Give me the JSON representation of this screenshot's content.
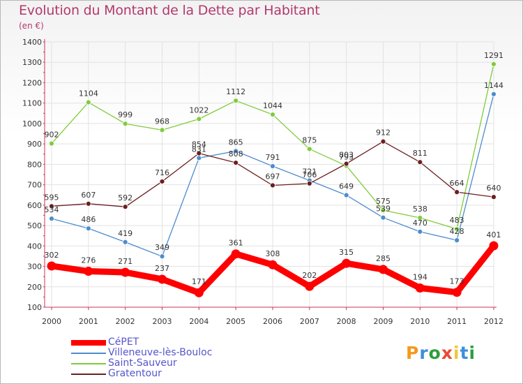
{
  "header": {
    "title": "Evolution du Montant de la Dette par Habitant",
    "subtitle": "(en €)"
  },
  "brand": {
    "text": "Proxiti",
    "colors": [
      "#f29a1d",
      "#3e8fd8",
      "#2e9e3e",
      "#ea4b34",
      "#f2c53a",
      "#3e8fd8",
      "#2e9e3e"
    ]
  },
  "chart_data": {
    "type": "line",
    "x": [
      "2000",
      "2001",
      "2002",
      "2003",
      "2004",
      "2005",
      "2006",
      "2007",
      "2008",
      "2009",
      "2010",
      "2011",
      "2012"
    ],
    "ylim": [
      100,
      1400
    ],
    "yticks": [
      100,
      200,
      300,
      400,
      500,
      600,
      700,
      800,
      900,
      1000,
      1100,
      1200,
      1300,
      1400
    ],
    "grid": true,
    "legend_position": "bottom-left",
    "series": [
      {
        "name": "CéPET",
        "color": "#ff0000",
        "bold": true,
        "values": [
          302,
          276,
          271,
          237,
          171,
          361,
          308,
          202,
          315,
          285,
          194,
          173,
          401
        ]
      },
      {
        "name": "Villeneuve-lès-Bouloc",
        "color": "#4d8ccd",
        "bold": false,
        "values": [
          534,
          486,
          419,
          349,
          831,
          865,
          791,
          721,
          649,
          539,
          470,
          428,
          1144
        ]
      },
      {
        "name": "Saint-Sauveur",
        "color": "#7fcc3b",
        "bold": false,
        "values": [
          902,
          1104,
          999,
          968,
          1022,
          1112,
          1044,
          875,
          793,
          575,
          538,
          483,
          1291
        ]
      },
      {
        "name": "Gratentour",
        "color": "#6b1f1f",
        "bold": false,
        "values": [
          595,
          607,
          592,
          716,
          854,
          808,
          697,
          706,
          803,
          912,
          811,
          664,
          640
        ]
      }
    ]
  }
}
